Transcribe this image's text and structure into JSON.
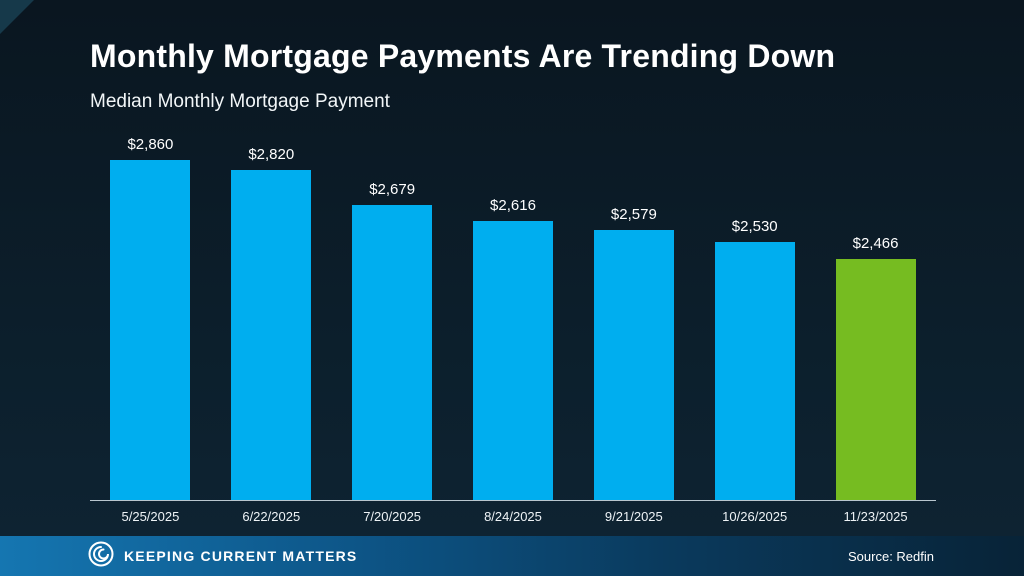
{
  "header": {
    "title": "Monthly Mortgage Payments Are Trending Down",
    "subtitle": "Median Monthly Mortgage Payment"
  },
  "chart_data": {
    "type": "bar",
    "title": "Monthly Mortgage Payments Are Trending Down",
    "subtitle": "Median Monthly Mortgage Payment",
    "categories": [
      "5/25/2025",
      "6/22/2025",
      "7/20/2025",
      "8/24/2025",
      "9/21/2025",
      "10/26/2025",
      "11/23/2025"
    ],
    "values": [
      2860,
      2820,
      2679,
      2616,
      2579,
      2530,
      2466
    ],
    "value_labels": [
      "$2,860",
      "$2,820",
      "$2,679",
      "$2,616",
      "$2,579",
      "$2,530",
      "$2,466"
    ],
    "bar_colors": [
      "#00AEEF",
      "#00AEEF",
      "#00AEEF",
      "#00AEEF",
      "#00AEEF",
      "#00AEEF",
      "#76BC21"
    ],
    "xlabel": "",
    "ylabel": "",
    "ylim": [
      1500,
      2900
    ],
    "grid": false,
    "legend": false
  },
  "footer": {
    "brand": "Keeping Current Matters",
    "source": "Source: Redfin"
  },
  "colors": {
    "background_top": "#0a1620",
    "background_bottom": "#0e2433",
    "bar_blue": "#00AEEF",
    "bar_green": "#76BC21",
    "footer_blue": "#1576b1",
    "text": "#ffffff"
  }
}
